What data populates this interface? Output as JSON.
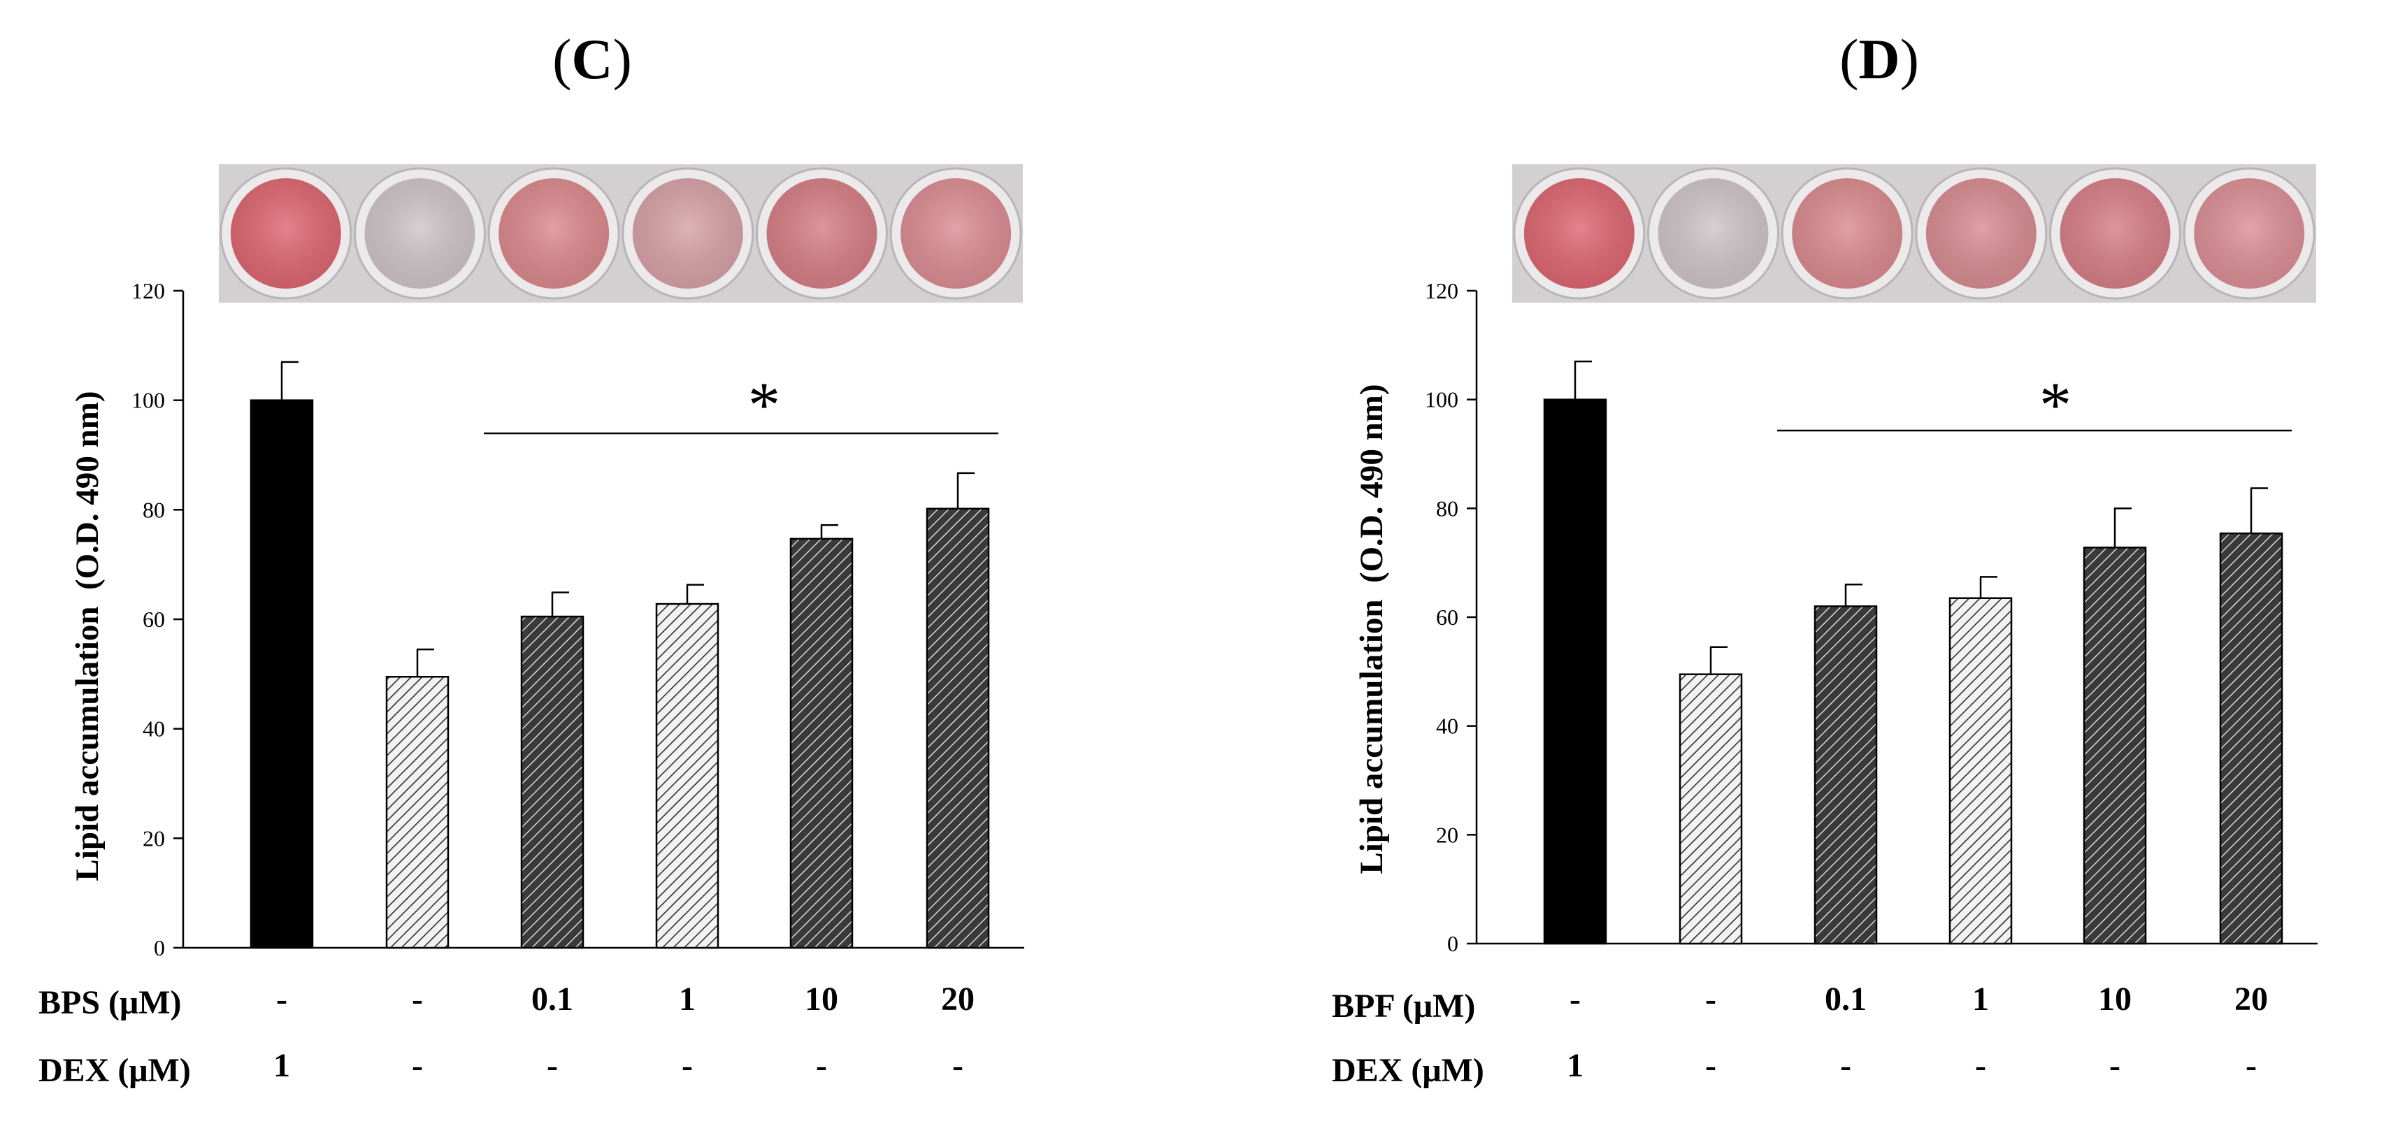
{
  "panels": [
    {
      "panel_label": "(C)",
      "label_open": "(",
      "label_letter": "C",
      "label_close": ")",
      "significance_marker": "*",
      "rows": [
        {
          "label": "BPS (μM)",
          "values": [
            "-",
            "-",
            "0.1",
            "1",
            "10",
            "20"
          ]
        },
        {
          "label": "DEX (μM)",
          "values": [
            "1",
            "-",
            "-",
            "-",
            "-",
            "-"
          ]
        }
      ],
      "well_colors": [
        "#de6872",
        "#cfc5c8",
        "#dc8a8e",
        "#d7a3a8",
        "#d68087",
        "#dc8e94"
      ]
    },
    {
      "panel_label": "(D)",
      "label_open": "(",
      "label_letter": "D",
      "label_close": ")",
      "significance_marker": "*",
      "rows": [
        {
          "label": "BPF (μM)",
          "values": [
            "-",
            "-",
            "0.1",
            "1",
            "10",
            "20"
          ]
        },
        {
          "label": "DEX (μM)",
          "values": [
            "1",
            "-",
            "-",
            "-",
            "-",
            "-"
          ]
        }
      ],
      "well_colors": [
        "#de6872",
        "#cfc5c8",
        "#db8c91",
        "#d88d93",
        "#d78088",
        "#dc9097"
      ]
    }
  ],
  "chart_data": [
    {
      "type": "bar",
      "ylabel": "Lipid accumulation  (O.D. 490 nm)",
      "ylim": [
        0,
        120
      ],
      "yticks": [
        0,
        20,
        40,
        60,
        80,
        100,
        120
      ],
      "values": [
        100,
        49.5,
        60.5,
        62.8,
        74.7,
        80.2
      ],
      "errors": [
        7,
        5,
        4.4,
        3.5,
        2.5,
        6.5
      ],
      "significance_range": [
        2,
        5
      ],
      "bar_fills": [
        "solid-black",
        "hatch-light",
        "hatch-dark",
        "hatch-light",
        "hatch-dark",
        "hatch-dark"
      ]
    },
    {
      "type": "bar",
      "ylabel": "Lipid accumulation  (O.D. 490 nm)",
      "ylim": [
        0,
        120
      ],
      "yticks": [
        0,
        20,
        40,
        60,
        80,
        100,
        120
      ],
      "values": [
        100,
        49.5,
        62,
        63.5,
        72.8,
        75.4
      ],
      "errors": [
        7,
        5,
        4,
        3.9,
        7.2,
        8.3
      ],
      "significance_range": [
        2,
        5
      ],
      "bar_fills": [
        "solid-black",
        "hatch-light",
        "hatch-dark",
        "hatch-light",
        "hatch-dark",
        "hatch-dark"
      ]
    }
  ]
}
